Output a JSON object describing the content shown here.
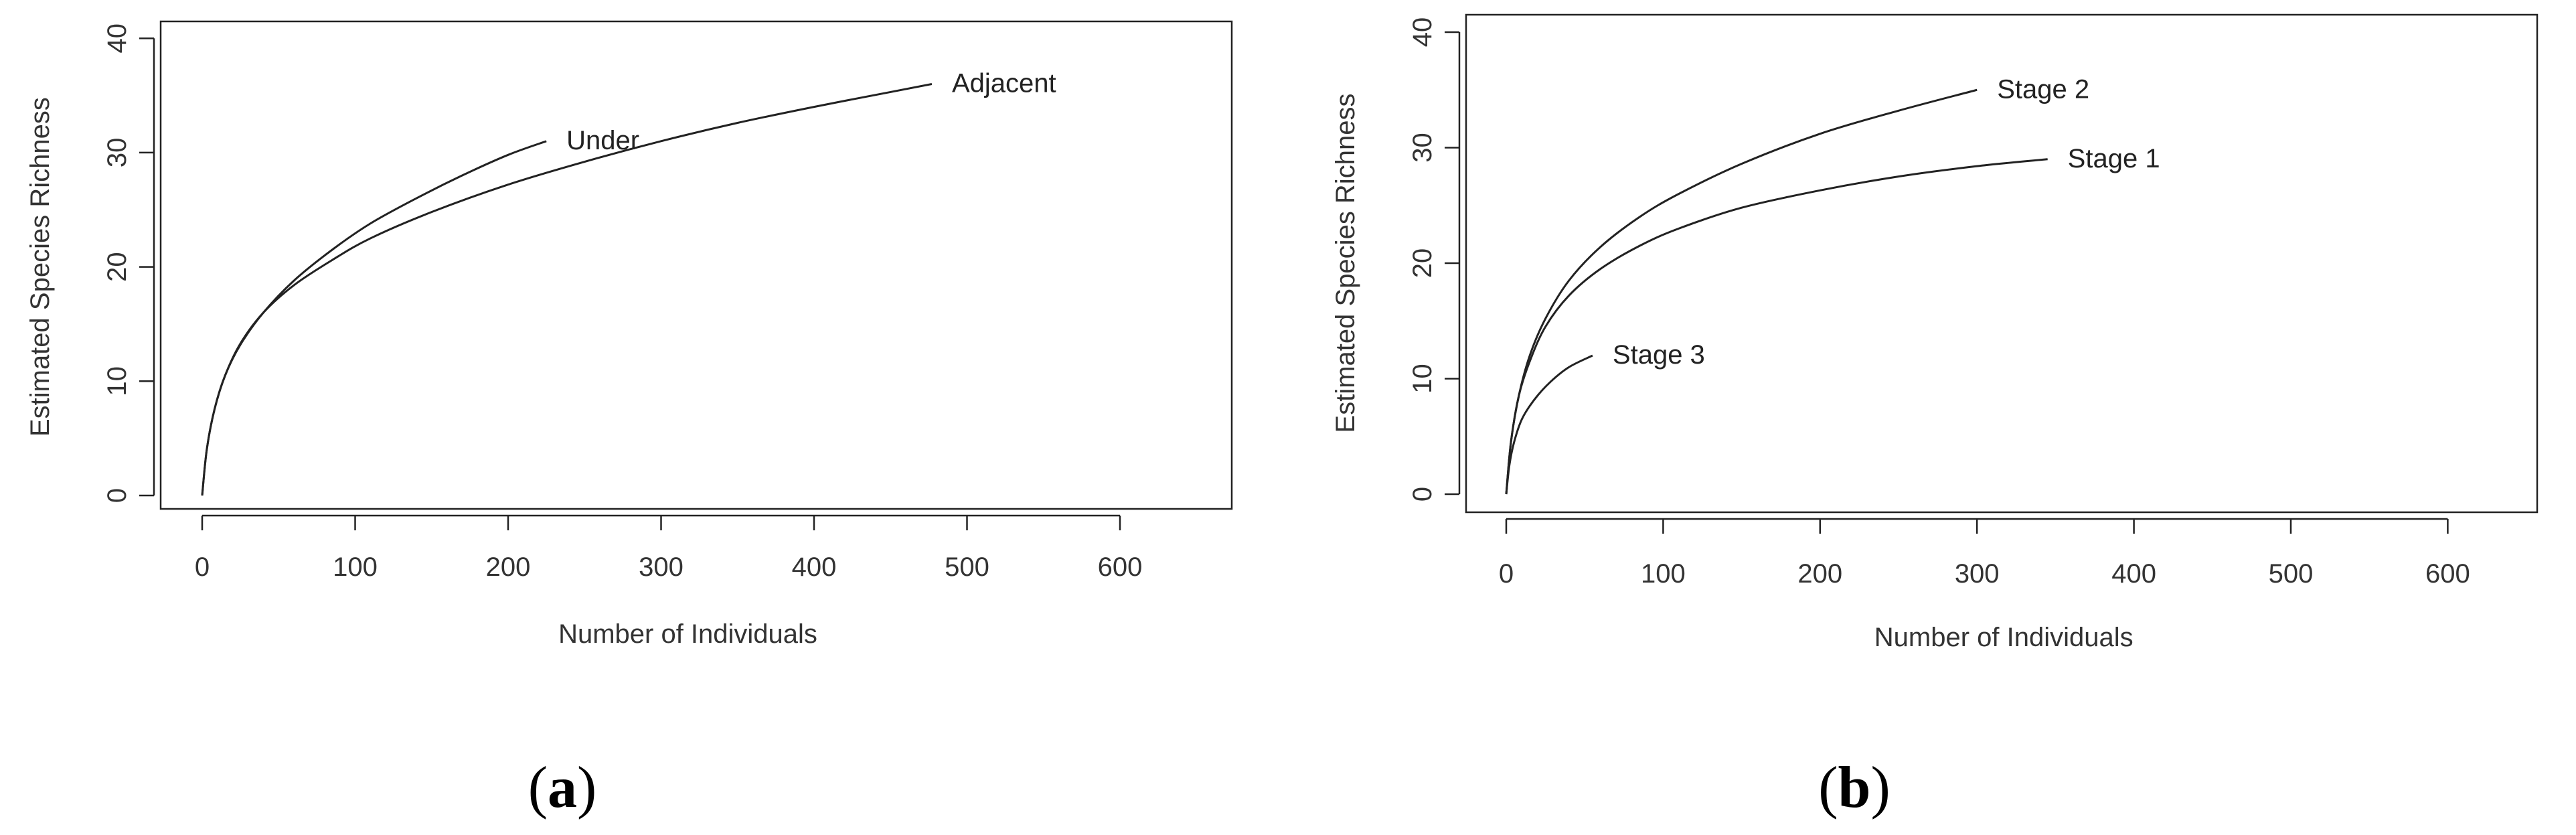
{
  "chart_data": [
    {
      "type": "line",
      "panel_label": {
        "open": "(",
        "letter": "a",
        "close": ")"
      },
      "title": "",
      "xlabel": "Number of Individuals",
      "ylabel": "Estimated Species Richness",
      "xlim": [
        -20,
        670
      ],
      "ylim": [
        -2,
        40
      ],
      "xticks": [
        0,
        100,
        200,
        300,
        400,
        500,
        600
      ],
      "yticks": [
        0,
        10,
        20,
        30,
        40
      ],
      "grid": false,
      "series": [
        {
          "name": "Under",
          "x": [
            0,
            3,
            8,
            15,
            25,
            40,
            60,
            85,
            110,
            140,
            170,
            200,
            225
          ],
          "y": [
            0,
            4,
            7.5,
            10.5,
            13.2,
            16,
            18.8,
            21.5,
            23.8,
            26,
            28,
            29.8,
            31
          ]
        },
        {
          "name": "Adjacent",
          "x": [
            0,
            3,
            8,
            15,
            25,
            40,
            60,
            85,
            110,
            150,
            200,
            250,
            300,
            350,
            400,
            450,
            477
          ],
          "y": [
            0,
            4,
            7.5,
            10.5,
            13.3,
            16,
            18.4,
            20.6,
            22.5,
            24.8,
            27.2,
            29.2,
            31,
            32.6,
            34,
            35.3,
            36
          ]
        }
      ]
    },
    {
      "type": "line",
      "panel_label": {
        "open": "(",
        "letter": "b",
        "close": ")"
      },
      "title": "",
      "xlabel": "Number of Individuals",
      "ylabel": "Estimated Species Richness",
      "xlim": [
        -20,
        670
      ],
      "ylim": [
        -2,
        40
      ],
      "xticks": [
        0,
        100,
        200,
        300,
        400,
        500,
        600
      ],
      "yticks": [
        0,
        10,
        20,
        30,
        40
      ],
      "grid": false,
      "series": [
        {
          "name": "Stage 2",
          "x": [
            0,
            3,
            8,
            15,
            25,
            40,
            60,
            85,
            110,
            150,
            200,
            250,
            300
          ],
          "y": [
            0,
            4.5,
            8.5,
            12,
            15.2,
            18.5,
            21.4,
            24,
            26,
            28.6,
            31.2,
            33.2,
            35
          ]
        },
        {
          "name": "Stage 1",
          "x": [
            0,
            3,
            8,
            15,
            25,
            40,
            60,
            85,
            110,
            150,
            200,
            250,
            300,
            345
          ],
          "y": [
            0,
            4.5,
            8.5,
            11.5,
            14.5,
            17.2,
            19.5,
            21.5,
            23,
            24.8,
            26.3,
            27.5,
            28.4,
            29
          ]
        },
        {
          "name": "Stage 3",
          "x": [
            0,
            2,
            5,
            10,
            18,
            28,
            40,
            55
          ],
          "y": [
            0,
            2.5,
            4.5,
            6.5,
            8.2,
            9.7,
            11,
            12
          ]
        }
      ]
    }
  ]
}
